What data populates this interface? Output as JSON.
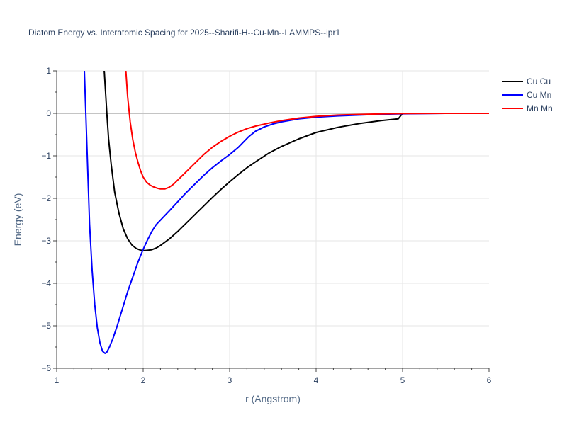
{
  "chart_data": {
    "type": "line",
    "title": "Diatom Energy vs. Interatomic Spacing for 2025--Sharifi-H--Cu-Mn--LAMMPS--ipr1",
    "xlabel": "r (Angstrom)",
    "ylabel": "Energy (eV)",
    "xlim": [
      1,
      6
    ],
    "ylim": [
      -6,
      1
    ],
    "xticks": [
      1,
      2,
      3,
      4,
      5,
      6
    ],
    "yticks": [
      1,
      0,
      -1,
      -2,
      -3,
      -4,
      -5,
      -6
    ],
    "ytick_labels": [
      "1",
      "0",
      "−1",
      "−2",
      "−3",
      "−4",
      "−5",
      "−6"
    ],
    "grid": true,
    "legend_position": "top-right",
    "series": [
      {
        "name": "Cu Cu",
        "color": "#000000",
        "x": [
          1.55,
          1.58,
          1.6,
          1.63,
          1.67,
          1.72,
          1.77,
          1.82,
          1.87,
          1.92,
          1.97,
          2.02,
          2.06,
          2.1,
          2.15,
          2.2,
          2.3,
          2.4,
          2.5,
          2.6,
          2.7,
          2.8,
          2.9,
          3.0,
          3.1,
          3.2,
          3.3,
          3.45,
          3.6,
          3.8,
          4.0,
          4.25,
          4.5,
          4.75,
          4.95,
          5.0,
          5.5,
          6.0
        ],
        "y": [
          1.0,
          0.0,
          -0.6,
          -1.2,
          -1.85,
          -2.35,
          -2.72,
          -2.95,
          -3.1,
          -3.18,
          -3.22,
          -3.23,
          -3.22,
          -3.21,
          -3.17,
          -3.11,
          -2.96,
          -2.78,
          -2.58,
          -2.38,
          -2.18,
          -1.98,
          -1.79,
          -1.61,
          -1.44,
          -1.28,
          -1.14,
          -0.94,
          -0.78,
          -0.6,
          -0.45,
          -0.33,
          -0.24,
          -0.17,
          -0.13,
          0.0,
          0.0,
          0.0
        ]
      },
      {
        "name": "Cu Mn",
        "color": "#0000ff",
        "x": [
          1.32,
          1.35,
          1.38,
          1.41,
          1.44,
          1.47,
          1.5,
          1.53,
          1.56,
          1.58,
          1.61,
          1.65,
          1.7,
          1.76,
          1.82,
          1.88,
          1.94,
          2.0,
          2.05,
          2.1,
          2.15,
          2.22,
          2.3,
          2.4,
          2.5,
          2.6,
          2.7,
          2.8,
          2.9,
          3.0,
          3.1,
          3.22,
          3.3,
          3.4,
          3.5,
          3.6,
          3.8,
          4.0,
          4.25,
          4.5,
          4.75,
          5.0,
          5.5,
          6.0
        ],
        "y": [
          1.0,
          -0.8,
          -2.6,
          -3.7,
          -4.5,
          -5.05,
          -5.4,
          -5.6,
          -5.65,
          -5.62,
          -5.5,
          -5.3,
          -5.0,
          -4.6,
          -4.2,
          -3.85,
          -3.5,
          -3.2,
          -2.98,
          -2.78,
          -2.62,
          -2.47,
          -2.3,
          -2.08,
          -1.86,
          -1.66,
          -1.46,
          -1.28,
          -1.12,
          -0.97,
          -0.8,
          -0.55,
          -0.42,
          -0.32,
          -0.25,
          -0.2,
          -0.13,
          -0.09,
          -0.06,
          -0.04,
          -0.02,
          -0.01,
          0.0,
          0.0
        ]
      },
      {
        "name": "Mn Mn",
        "color": "#ff0000",
        "x": [
          1.8,
          1.82,
          1.85,
          1.88,
          1.91,
          1.94,
          1.97,
          2.0,
          2.04,
          2.08,
          2.12,
          2.16,
          2.2,
          2.25,
          2.3,
          2.35,
          2.4,
          2.5,
          2.6,
          2.7,
          2.8,
          2.9,
          3.0,
          3.1,
          3.2,
          3.3,
          3.45,
          3.6,
          3.8,
          4.0,
          4.25,
          4.5,
          4.75,
          5.0,
          5.5,
          6.0
        ],
        "y": [
          1.0,
          0.4,
          -0.2,
          -0.62,
          -0.92,
          -1.15,
          -1.35,
          -1.5,
          -1.62,
          -1.69,
          -1.73,
          -1.76,
          -1.78,
          -1.78,
          -1.74,
          -1.67,
          -1.57,
          -1.37,
          -1.17,
          -0.97,
          -0.8,
          -0.66,
          -0.54,
          -0.44,
          -0.36,
          -0.3,
          -0.23,
          -0.17,
          -0.11,
          -0.07,
          -0.04,
          -0.025,
          -0.012,
          -0.005,
          0.0,
          0.0
        ]
      }
    ]
  }
}
